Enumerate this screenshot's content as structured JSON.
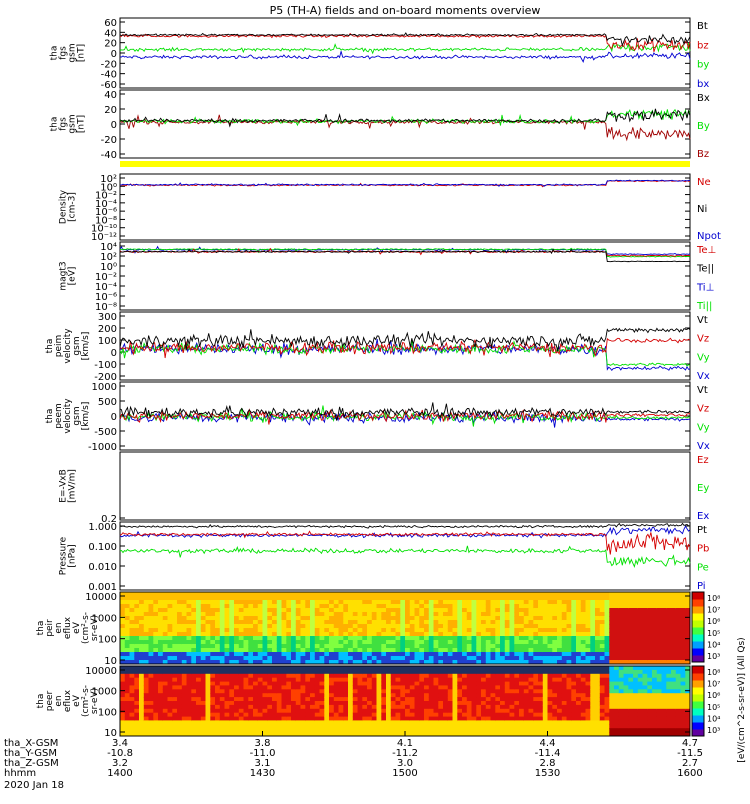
{
  "title": "P5 (TH-A) fields and on-board moments overview",
  "colors": {
    "black": "#000000",
    "red": "#d40000",
    "green": "#00e000",
    "blue": "#0000d0",
    "darkred": "#a00000",
    "yellow": "#ffff00"
  },
  "panels": [
    {
      "ylabel": [
        "tha",
        "fgs",
        "gsm",
        "[nT]"
      ],
      "ticks": [
        "60",
        "40",
        "20",
        "0",
        "-20",
        "-40",
        "-60"
      ],
      "legend": [
        {
          "text": "Bt",
          "color": "black"
        },
        {
          "text": "bz",
          "color": "red"
        },
        {
          "text": "by",
          "color": "green"
        },
        {
          "text": "bx",
          "color": "blue"
        }
      ]
    },
    {
      "ylabel": [
        "tha",
        "fgs",
        "gsm",
        "[nT]"
      ],
      "ticks": [
        "40",
        "20",
        "0",
        "-20",
        "-40"
      ],
      "legend": [
        {
          "text": "Bx",
          "color": "black"
        },
        {
          "text": "By",
          "color": "green"
        },
        {
          "text": "Bz",
          "color": "darkred"
        }
      ]
    },
    {
      "ylabel": [
        "Density",
        "[cm-3]"
      ],
      "ticks": [
        "10²",
        "10⁰",
        "10⁻²",
        "10⁻⁴",
        "10⁻⁶",
        "10⁻⁸",
        "10⁻¹⁰",
        "10⁻¹²"
      ],
      "legend": [
        {
          "text": "Ne",
          "color": "red"
        },
        {
          "text": "Ni",
          "color": "black"
        },
        {
          "text": "Npot",
          "color": "blue"
        }
      ]
    },
    {
      "ylabel": [
        "magt3",
        "[eV]"
      ],
      "ticks": [
        "10⁴",
        "10²",
        "10⁰",
        "10⁻²",
        "10⁻⁴",
        "10⁻⁶",
        "10⁻⁸"
      ],
      "legend": [
        {
          "text": "Te⊥",
          "color": "red"
        },
        {
          "text": "Te||",
          "color": "black"
        },
        {
          "text": "Ti⊥",
          "color": "blue"
        },
        {
          "text": "Ti||",
          "color": "green"
        }
      ]
    },
    {
      "ylabel": [
        "tha",
        "peim",
        "velocity",
        "gsm",
        "[km/s]"
      ],
      "ticks": [
        "300",
        "200",
        "100",
        "0",
        "-100",
        "-200"
      ],
      "legend": [
        {
          "text": "Vt",
          "color": "black"
        },
        {
          "text": "Vz",
          "color": "red"
        },
        {
          "text": "Vy",
          "color": "green"
        },
        {
          "text": "Vx",
          "color": "blue"
        }
      ]
    },
    {
      "ylabel": [
        "tha",
        "peem",
        "velocity",
        "gsm",
        "[km/s]"
      ],
      "ticks": [
        "1000",
        "500",
        "0",
        "-500",
        "-1000"
      ],
      "legend": [
        {
          "text": "Vt",
          "color": "black"
        },
        {
          "text": "Vz",
          "color": "red"
        },
        {
          "text": "Vy",
          "color": "green"
        },
        {
          "text": "Vx",
          "color": "blue"
        }
      ]
    },
    {
      "ylabel": [
        "E=-VxB",
        "[mV/m]"
      ],
      "ticks": [
        "0.2"
      ],
      "legend": [
        {
          "text": "Ez",
          "color": "red"
        },
        {
          "text": "Ey",
          "color": "green"
        },
        {
          "text": "Ex",
          "color": "blue"
        }
      ]
    },
    {
      "ylabel": [
        "Pressure",
        "[nPa]"
      ],
      "ticks": [
        "1.000",
        "0.100",
        "0.010",
        "0.001"
      ],
      "legend": [
        {
          "text": "Pt",
          "color": "black"
        },
        {
          "text": "Pb",
          "color": "red"
        },
        {
          "text": "Pe",
          "color": "green"
        },
        {
          "text": "Pi",
          "color": "blue"
        }
      ]
    },
    {
      "ylabel": [
        "tha",
        "peir",
        "en",
        "eflux",
        "eV",
        "(cm²-s-",
        "sr-eV)"
      ],
      "ticks": [
        "10000",
        "1000",
        "100",
        "10"
      ]
    },
    {
      "ylabel": [
        "tha",
        "peer",
        "en",
        "eflux",
        "eV",
        "(cm²-s-",
        "sr-eV)"
      ],
      "ticks": [
        "10000",
        "1000",
        "100",
        "10"
      ]
    }
  ],
  "colorbar": {
    "ticks": [
      "10⁸",
      "10⁷",
      "10⁶",
      "10⁵",
      "10⁴",
      "10³"
    ],
    "label": "[eV/(cm^2-s-sr-eV)] (All Qs)"
  },
  "xaxis": {
    "rows": [
      {
        "name": "tha_X-GSM",
        "values": [
          "3.4",
          "3.8",
          "4.1",
          "4.4",
          "4.7"
        ]
      },
      {
        "name": "tha_Y-GSM",
        "values": [
          "-10.8",
          "-11.0",
          "-11.2",
          "-11.4",
          "-11.5"
        ]
      },
      {
        "name": "tha_Z-GSM",
        "values": [
          "3.2",
          "3.1",
          "3.0",
          "2.8",
          "2.7"
        ]
      },
      {
        "name": "hhmm",
        "values": [
          "1400",
          "1430",
          "1500",
          "1530",
          "1600"
        ]
      }
    ],
    "date": "2020 Jan 18"
  },
  "chart_data": {
    "type": "line",
    "title": "P5 (TH-A) fields and on-board moments overview",
    "x": [
      "1400",
      "1430",
      "1500",
      "1530",
      "1600"
    ],
    "xlabel": "hhmm",
    "series": [
      {
        "name": "Bt",
        "values": [
          30,
          30,
          30,
          32,
          25
        ]
      },
      {
        "name": "bz",
        "values": [
          29,
          29,
          29,
          30,
          15
        ]
      },
      {
        "name": "by",
        "values": [
          5,
          5,
          5,
          5,
          10
        ]
      },
      {
        "name": "bx",
        "values": [
          -7,
          -7,
          -7,
          -7,
          -5
        ]
      }
    ],
    "ylim": [
      -60,
      60
    ]
  }
}
